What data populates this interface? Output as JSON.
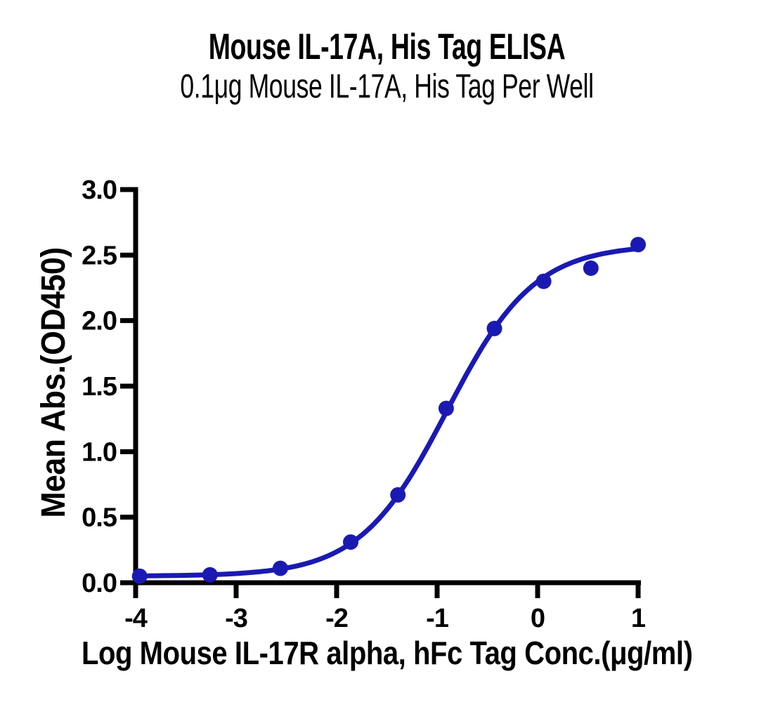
{
  "chart_data": {
    "type": "scatter",
    "title": "Mouse IL-17A, His Tag ELISA",
    "subtitle": "0.1μg Mouse IL-17A, His Tag Per Well",
    "xlabel": "Log Mouse IL-17R alpha, hFc Tag Conc.(μg/ml)",
    "ylabel": "Mean Abs.(OD450)",
    "xlim": [
      -4,
      1
    ],
    "ylim": [
      0,
      3
    ],
    "x_ticks": [
      -4,
      -3,
      -2,
      -1,
      0,
      1
    ],
    "x_tick_labels": [
      "-4",
      "-3",
      "-2",
      "-1",
      "0",
      "1"
    ],
    "y_ticks": [
      0,
      0.5,
      1,
      1.5,
      2,
      2.5,
      3
    ],
    "y_tick_labels": [
      "0.0",
      "0.5",
      "1.0",
      "1.5",
      "2.0",
      "2.5",
      "3.0"
    ],
    "grid": false,
    "legend_position": "none",
    "series": [
      {
        "name": "Mouse IL-17R alpha, hFc Tag",
        "marker": "circle",
        "color": "#1a1ab3",
        "points": [
          {
            "x": -3.96,
            "y": 0.05
          },
          {
            "x": -3.26,
            "y": 0.06
          },
          {
            "x": -2.56,
            "y": 0.11
          },
          {
            "x": -1.86,
            "y": 0.31
          },
          {
            "x": -1.39,
            "y": 0.67
          },
          {
            "x": -0.91,
            "y": 1.33
          },
          {
            "x": -0.43,
            "y": 1.94
          },
          {
            "x": 0.06,
            "y": 2.3
          },
          {
            "x": 0.53,
            "y": 2.4
          },
          {
            "x": 1.0,
            "y": 2.58
          }
        ]
      }
    ],
    "fit_curve": {
      "model": "4PL",
      "bottom": 0.05,
      "top": 2.58,
      "log_ec50": -0.9,
      "hill": 1.0,
      "x_start": -3.96,
      "x_end": 0.97,
      "color": "#1a1ab3"
    },
    "axis_color": "#000000",
    "background_color": "#ffffff"
  }
}
